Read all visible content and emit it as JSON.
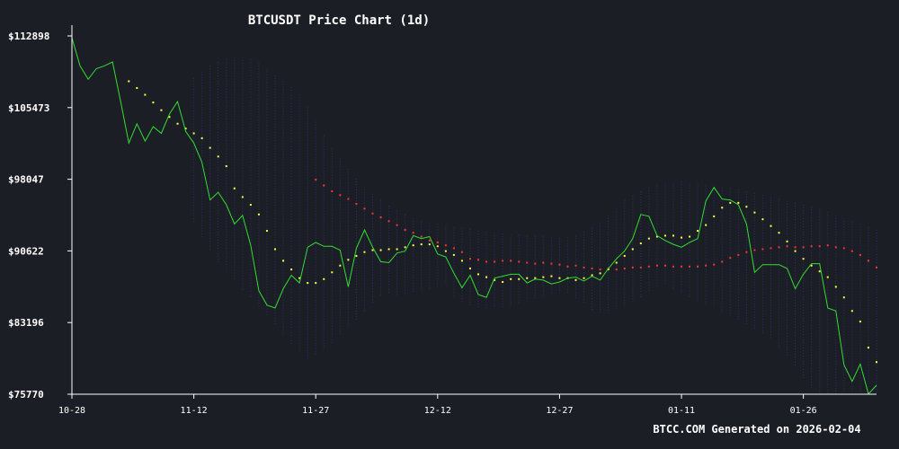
{
  "colors": {
    "background": "#1c1e26",
    "price": "#33dd33",
    "sar": "#ffff44",
    "ma": "#ff3333",
    "bands": "#2a2f6e",
    "axis": "#ffffff"
  },
  "footer_text": "BTCC.COM Generated on 2026-02-04",
  "chart_data": {
    "type": "line",
    "title": "BTCUSDT Price Chart (1d)",
    "grid": false,
    "x_ticks": [
      "10-28",
      "11-12",
      "11-27",
      "12-12",
      "12-27",
      "01-11",
      "01-26"
    ],
    "x_tick_days": [
      0,
      15,
      30,
      45,
      60,
      75,
      90
    ],
    "y_ticks": [
      "$112898",
      "$105473",
      "$98047",
      "$90622",
      "$83196",
      "$75770"
    ],
    "y_tick_values": [
      112898,
      105473,
      98047,
      90622,
      83196,
      75770
    ],
    "ylim": [
      75770,
      112898
    ],
    "xlim_days": [
      0,
      99
    ],
    "series": [
      {
        "style": "line",
        "x": [
          0,
          1,
          2,
          3,
          4,
          5,
          6,
          7,
          8,
          9,
          10,
          11,
          12,
          13,
          14,
          15,
          16,
          17,
          18,
          19,
          20,
          21,
          22,
          23,
          24,
          25,
          26,
          27,
          28,
          29,
          30,
          31,
          32,
          33,
          34,
          35,
          36,
          37,
          38,
          39,
          40,
          41,
          42,
          43,
          44,
          45,
          46,
          47,
          48,
          49,
          50,
          51,
          52,
          53,
          54,
          55,
          56,
          57,
          58,
          59,
          60,
          61,
          62,
          63,
          64,
          65,
          66,
          67,
          68,
          69,
          70,
          71,
          72,
          73,
          74,
          75,
          76,
          77,
          78,
          79,
          80,
          81,
          82,
          83,
          84,
          85,
          86,
          87,
          88,
          89,
          90,
          91,
          92,
          93,
          94,
          95,
          96,
          97,
          98,
          99
        ],
        "values": [
          112700,
          109800,
          108400,
          109500,
          109800,
          110200,
          106100,
          101800,
          103800,
          102000,
          103500,
          102800,
          104800,
          106100,
          103000,
          101800,
          99800,
          95900,
          96700,
          95400,
          93400,
          94300,
          91200,
          86500,
          85000,
          84700,
          86700,
          88100,
          87300,
          91000,
          91500,
          91100,
          91100,
          90700,
          86900,
          90900,
          92800,
          91000,
          89500,
          89400,
          90400,
          90600,
          92200,
          91900,
          92100,
          90300,
          90000,
          88300,
          86800,
          88100,
          86100,
          85800,
          87800,
          88000,
          88200,
          88200,
          87300,
          87700,
          87600,
          87200,
          87400,
          87800,
          87900,
          87500,
          88000,
          87600,
          88800,
          89800,
          90600,
          91900,
          94400,
          94200,
          92200,
          91700,
          91300,
          91000,
          91500,
          91900,
          95800,
          97200,
          96000,
          95900,
          95400,
          93400,
          88400,
          89200,
          89200,
          89200,
          88800,
          86700,
          88200,
          89300,
          89300,
          84700,
          84400,
          78800,
          77100,
          78900,
          75800,
          76700
        ]
      },
      {
        "style": "dots",
        "x": [
          7,
          8,
          9,
          10,
          11,
          12,
          13,
          14,
          15,
          16,
          17,
          18,
          19,
          20,
          21,
          22,
          23,
          24,
          25,
          26,
          27,
          28,
          29,
          30,
          31,
          32,
          33,
          34,
          35,
          36,
          37,
          38,
          39,
          40,
          41,
          42,
          43,
          44,
          45,
          46,
          47,
          48,
          49,
          50,
          51,
          52,
          53,
          54,
          55,
          56,
          57,
          58,
          59,
          60,
          61,
          62,
          63,
          64,
          65,
          66,
          67,
          68,
          69,
          70,
          71,
          72,
          73,
          74,
          75,
          76,
          77,
          78,
          79,
          80,
          81,
          82,
          83,
          84,
          85,
          86,
          87,
          88,
          89,
          90,
          91,
          92,
          93,
          94,
          95,
          96,
          97,
          98,
          99
        ],
        "values": [
          108200,
          107500,
          106800,
          106000,
          105200,
          104500,
          103800,
          103300,
          102800,
          102300,
          101300,
          100400,
          99400,
          97100,
          96200,
          95400,
          94400,
          92700,
          90800,
          89600,
          88700,
          87800,
          87300,
          87300,
          87700,
          88400,
          89100,
          89700,
          90100,
          90500,
          90700,
          90700,
          90800,
          90800,
          91000,
          91200,
          91300,
          91300,
          91100,
          90600,
          90200,
          89600,
          88800,
          88200,
          87900,
          87600,
          87400,
          87700,
          87700,
          87800,
          87800,
          87900,
          88000,
          87800,
          87800,
          87600,
          87800,
          88100,
          88300,
          88700,
          89400,
          90100,
          90800,
          91400,
          91900,
          92100,
          92200,
          92200,
          92000,
          92100,
          92700,
          93300,
          94200,
          95100,
          95600,
          95600,
          95200,
          94600,
          93900,
          93200,
          92500,
          91600,
          90600,
          89800,
          89100,
          88500,
          87900,
          86900,
          85800,
          84400,
          83300,
          80600,
          79100
        ]
      },
      {
        "style": "dots",
        "x": [
          30,
          31,
          32,
          33,
          34,
          35,
          36,
          37,
          38,
          39,
          40,
          41,
          42,
          43,
          44,
          45,
          46,
          47,
          48,
          49,
          50,
          51,
          52,
          53,
          54,
          55,
          56,
          57,
          58,
          59,
          60,
          61,
          62,
          63,
          64,
          65,
          66,
          67,
          68,
          69,
          70,
          71,
          72,
          73,
          74,
          75,
          76,
          77,
          78,
          79,
          80,
          81,
          82,
          83,
          84,
          85,
          86,
          87,
          88,
          89,
          90,
          91,
          92,
          93,
          94,
          95,
          96,
          97,
          98,
          99
        ],
        "values": [
          98000,
          97400,
          96800,
          96400,
          96000,
          95500,
          95000,
          94500,
          94100,
          93700,
          93300,
          92800,
          92500,
          92100,
          91700,
          91500,
          91200,
          90900,
          90500,
          89800,
          89700,
          89500,
          89500,
          89600,
          89600,
          89500,
          89400,
          89300,
          89400,
          89300,
          89200,
          89000,
          89100,
          88900,
          88800,
          88700,
          88800,
          88700,
          88800,
          88900,
          88900,
          89000,
          89100,
          89100,
          89000,
          89000,
          89000,
          89000,
          89100,
          89200,
          89500,
          89900,
          90200,
          90500,
          90700,
          90800,
          90900,
          91000,
          91100,
          91000,
          91000,
          91100,
          91100,
          91200,
          91000,
          90900,
          90600,
          90200,
          89600,
          88900
        ]
      },
      {
        "style": "band",
        "x": [
          15,
          16,
          17,
          18,
          19,
          20,
          21,
          22,
          23,
          24,
          25,
          26,
          27,
          28,
          29,
          30,
          31,
          32,
          33,
          34,
          35,
          36,
          37,
          38,
          39,
          40,
          41,
          42,
          43,
          44,
          45,
          46,
          47,
          48,
          49,
          50,
          51,
          52,
          53,
          54,
          55,
          56,
          57,
          58,
          59,
          60,
          61,
          62,
          63,
          64,
          65,
          66,
          67,
          68,
          69,
          70,
          71,
          72,
          73,
          74,
          75,
          76,
          77,
          78,
          79,
          80,
          81,
          82,
          83,
          84,
          85,
          86,
          87,
          88,
          89,
          90,
          91,
          92,
          93,
          94,
          95,
          96,
          97,
          98,
          99
        ],
        "upper": [
          108500,
          109200,
          109800,
          110200,
          110500,
          110700,
          110700,
          110500,
          110100,
          109500,
          108800,
          108200,
          107600,
          106800,
          105500,
          104000,
          102600,
          101300,
          100200,
          99100,
          98100,
          97300,
          96500,
          95900,
          95300,
          94800,
          94400,
          94000,
          93700,
          93500,
          93400,
          93200,
          93100,
          93000,
          92900,
          92700,
          92600,
          92500,
          92400,
          92300,
          92300,
          92200,
          92200,
          92100,
          92000,
          91900,
          92000,
          92200,
          92600,
          93000,
          93500,
          94300,
          95000,
          95900,
          96300,
          96800,
          97200,
          97400,
          97600,
          97700,
          97800,
          97700,
          97600,
          97400,
          97300,
          97200,
          97100,
          97000,
          96800,
          96600,
          96400,
          96200,
          96000,
          95800,
          95600,
          95400,
          95200,
          95000,
          94700,
          94300,
          94000,
          93700,
          93400,
          93100,
          92800
        ],
        "lower": [
          93500,
          92000,
          90700,
          89500,
          88400,
          87500,
          86600,
          85700,
          84900,
          83900,
          82900,
          81900,
          81000,
          80200,
          79400,
          79700,
          80300,
          81000,
          81800,
          82600,
          83500,
          84300,
          85100,
          85900,
          86200,
          85900,
          86000,
          86200,
          86400,
          86600,
          86900,
          87100,
          85800,
          85300,
          85000,
          84700,
          84600,
          84700,
          84800,
          84900,
          85100,
          85400,
          85700,
          85900,
          86100,
          86300,
          86200,
          85500,
          85100,
          84400,
          84200,
          84200,
          84400,
          84700,
          85200,
          85700,
          86300,
          86800,
          87100,
          86700,
          86300,
          85800,
          85400,
          85100,
          84700,
          84300,
          83900,
          83500,
          83000,
          82500,
          82000,
          81400,
          80600,
          79600,
          78600,
          77400,
          76400,
          75900,
          75800,
          75800,
          75800,
          75800,
          75800,
          75800,
          75800
        ]
      }
    ]
  }
}
